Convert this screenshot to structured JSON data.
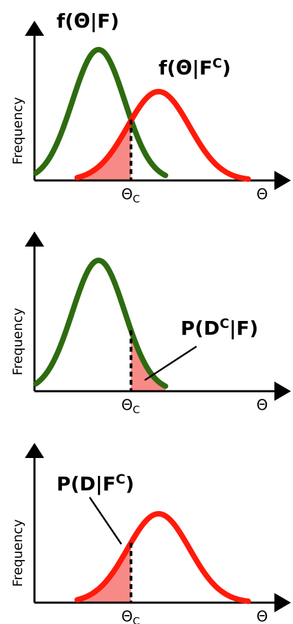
{
  "panels": [
    {
      "y_axis_label": "Frequency",
      "x_axis_label": "Θ",
      "threshold_label": {
        "main": "Θ",
        "sub": "C"
      },
      "curve_labels": [
        {
          "text": "f(Θ|F)"
        },
        {
          "text": "f(Θ|F",
          "sup": "C",
          "tail": ")"
        }
      ]
    },
    {
      "y_axis_label": "Frequency",
      "x_axis_label": "Θ",
      "threshold_label": {
        "main": "Θ",
        "sub": "C"
      },
      "curve_labels": [
        {
          "text": "P(D",
          "sup": "C",
          "tail": "|F)"
        }
      ]
    },
    {
      "y_axis_label": "Frequency",
      "x_axis_label": "Θ",
      "threshold_label": {
        "main": "Θ",
        "sub": "C"
      },
      "curve_labels": [
        {
          "text": "P(D|F",
          "sup": "C",
          "tail": ")"
        }
      ]
    }
  ]
}
